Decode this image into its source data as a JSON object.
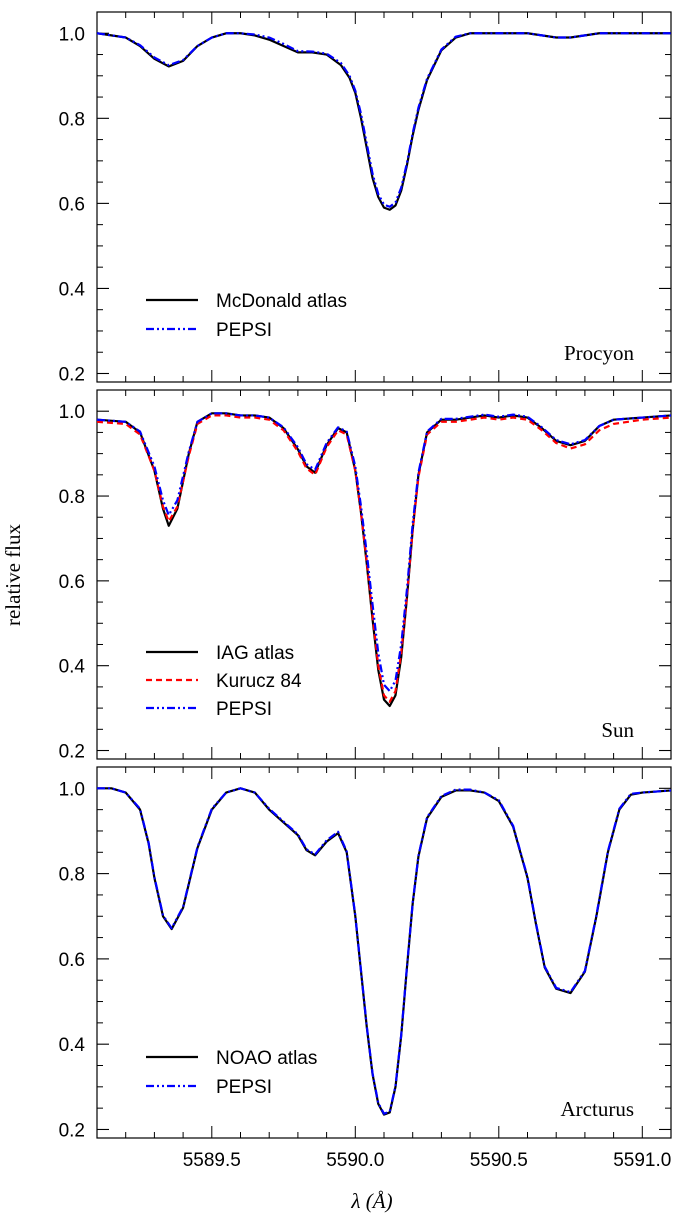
{
  "chart_data": [
    {
      "type": "line",
      "panel": "top",
      "label": "Procyon",
      "ylim": [
        0.18,
        1.05
      ],
      "xlim": [
        5589.1,
        5591.1
      ],
      "yticks": [
        0.2,
        0.4,
        0.6,
        0.8,
        1.0
      ],
      "ytick_labels": [
        "0.2",
        "0.4",
        "0.6",
        "0.8",
        "1.0"
      ],
      "legend_placement": "lower-left",
      "series": [
        {
          "name": "McDonald atlas",
          "color": "#000000",
          "dash": "solid",
          "width": 2.2,
          "x": [
            5589.1,
            5589.2,
            5589.25,
            5589.3,
            5589.35,
            5589.4,
            5589.45,
            5589.5,
            5589.55,
            5589.6,
            5589.65,
            5589.7,
            5589.75,
            5589.8,
            5589.85,
            5589.9,
            5589.95,
            5589.98,
            5590.0,
            5590.02,
            5590.04,
            5590.06,
            5590.08,
            5590.1,
            5590.12,
            5590.14,
            5590.16,
            5590.18,
            5590.2,
            5590.22,
            5590.25,
            5590.3,
            5590.35,
            5590.4,
            5590.45,
            5590.5,
            5590.55,
            5590.6,
            5590.65,
            5590.7,
            5590.75,
            5590.8,
            5590.85,
            5590.9,
            5591.0,
            5591.1
          ],
          "y": [
            1.0,
            0.99,
            0.97,
            0.94,
            0.922,
            0.935,
            0.97,
            0.99,
            1.0,
            1.0,
            0.995,
            0.985,
            0.97,
            0.955,
            0.955,
            0.95,
            0.925,
            0.895,
            0.86,
            0.8,
            0.73,
            0.66,
            0.615,
            0.59,
            0.585,
            0.595,
            0.63,
            0.69,
            0.76,
            0.82,
            0.89,
            0.96,
            0.99,
            1.0,
            1.0,
            1.0,
            1.0,
            1.0,
            0.995,
            0.99,
            0.99,
            0.995,
            1.0,
            1.0,
            1.0,
            1.0
          ]
        },
        {
          "name": "PEPSI",
          "color": "#0000ff",
          "dash": "dashdot",
          "width": 2.2,
          "x": [
            5589.1,
            5589.2,
            5589.25,
            5589.3,
            5589.35,
            5589.4,
            5589.45,
            5589.5,
            5589.55,
            5589.6,
            5589.65,
            5589.7,
            5589.75,
            5589.8,
            5589.85,
            5589.9,
            5589.95,
            5589.98,
            5590.0,
            5590.02,
            5590.04,
            5590.06,
            5590.08,
            5590.1,
            5590.12,
            5590.14,
            5590.16,
            5590.18,
            5590.2,
            5590.22,
            5590.25,
            5590.3,
            5590.35,
            5590.4,
            5590.45,
            5590.5,
            5590.55,
            5590.6,
            5590.65,
            5590.7,
            5590.75,
            5590.8,
            5590.85,
            5590.9,
            5591.0,
            5591.1
          ],
          "y": [
            1.0,
            0.99,
            0.972,
            0.943,
            0.925,
            0.937,
            0.97,
            0.99,
            1.0,
            1.0,
            0.997,
            0.99,
            0.975,
            0.958,
            0.957,
            0.952,
            0.93,
            0.9,
            0.865,
            0.81,
            0.74,
            0.67,
            0.622,
            0.597,
            0.592,
            0.602,
            0.637,
            0.695,
            0.765,
            0.825,
            0.893,
            0.962,
            0.992,
            1.0,
            1.0,
            1.0,
            1.0,
            1.0,
            0.995,
            0.99,
            0.99,
            0.995,
            1.0,
            1.0,
            1.0,
            1.0
          ]
        }
      ]
    },
    {
      "type": "line",
      "panel": "middle",
      "label": "Sun",
      "ylim": [
        0.18,
        1.05
      ],
      "xlim": [
        5589.1,
        5591.1
      ],
      "yticks": [
        0.2,
        0.4,
        0.6,
        0.8,
        1.0
      ],
      "ytick_labels": [
        "0.2",
        "0.4",
        "0.6",
        "0.8",
        "1.0"
      ],
      "ylabel": "relative flux",
      "legend_placement": "lower-left",
      "series": [
        {
          "name": "IAG atlas",
          "color": "#000000",
          "dash": "solid",
          "width": 2.2,
          "x": [
            5589.1,
            5589.2,
            5589.25,
            5589.3,
            5589.33,
            5589.35,
            5589.38,
            5589.42,
            5589.45,
            5589.5,
            5589.55,
            5589.6,
            5589.65,
            5589.7,
            5589.75,
            5589.8,
            5589.83,
            5589.86,
            5589.9,
            5589.94,
            5589.97,
            5590.0,
            5590.02,
            5590.04,
            5590.06,
            5590.08,
            5590.1,
            5590.12,
            5590.14,
            5590.16,
            5590.18,
            5590.2,
            5590.22,
            5590.25,
            5590.3,
            5590.35,
            5590.4,
            5590.45,
            5590.5,
            5590.55,
            5590.6,
            5590.65,
            5590.7,
            5590.75,
            5590.8,
            5590.85,
            5590.9,
            5591.0,
            5591.1
          ],
          "y": [
            0.98,
            0.975,
            0.95,
            0.86,
            0.77,
            0.73,
            0.77,
            0.9,
            0.975,
            0.995,
            0.995,
            0.99,
            0.99,
            0.985,
            0.96,
            0.91,
            0.87,
            0.855,
            0.92,
            0.96,
            0.95,
            0.86,
            0.76,
            0.64,
            0.51,
            0.39,
            0.32,
            0.305,
            0.33,
            0.42,
            0.56,
            0.72,
            0.85,
            0.95,
            0.98,
            0.98,
            0.985,
            0.99,
            0.985,
            0.99,
            0.985,
            0.96,
            0.93,
            0.92,
            0.93,
            0.965,
            0.98,
            0.985,
            0.99
          ]
        },
        {
          "name": "Kurucz 84",
          "color": "#ff0000",
          "dash": "dashed",
          "width": 2.2,
          "x": [
            5589.1,
            5589.2,
            5589.25,
            5589.3,
            5589.33,
            5589.35,
            5589.38,
            5589.42,
            5589.45,
            5589.5,
            5589.55,
            5589.6,
            5589.65,
            5589.7,
            5589.75,
            5589.8,
            5589.83,
            5589.86,
            5589.9,
            5589.94,
            5589.97,
            5590.0,
            5590.02,
            5590.04,
            5590.06,
            5590.08,
            5590.1,
            5590.12,
            5590.14,
            5590.16,
            5590.18,
            5590.2,
            5590.22,
            5590.25,
            5590.3,
            5590.35,
            5590.4,
            5590.45,
            5590.5,
            5590.55,
            5590.6,
            5590.65,
            5590.7,
            5590.75,
            5590.8,
            5590.85,
            5590.9,
            5591.0,
            5591.1
          ],
          "y": [
            0.975,
            0.97,
            0.945,
            0.86,
            0.775,
            0.74,
            0.775,
            0.895,
            0.97,
            0.99,
            0.99,
            0.985,
            0.985,
            0.98,
            0.955,
            0.905,
            0.865,
            0.85,
            0.915,
            0.955,
            0.945,
            0.86,
            0.76,
            0.645,
            0.52,
            0.4,
            0.33,
            0.315,
            0.34,
            0.43,
            0.565,
            0.72,
            0.845,
            0.945,
            0.975,
            0.975,
            0.98,
            0.985,
            0.98,
            0.985,
            0.98,
            0.955,
            0.925,
            0.912,
            0.922,
            0.955,
            0.97,
            0.98,
            0.985
          ]
        },
        {
          "name": "PEPSI",
          "color": "#0000ff",
          "dash": "dashdot",
          "width": 2.2,
          "x": [
            5589.1,
            5589.2,
            5589.25,
            5589.3,
            5589.33,
            5589.35,
            5589.38,
            5589.42,
            5589.45,
            5589.5,
            5589.55,
            5589.6,
            5589.65,
            5589.7,
            5589.75,
            5589.8,
            5589.83,
            5589.86,
            5589.9,
            5589.94,
            5589.97,
            5590.0,
            5590.02,
            5590.04,
            5590.06,
            5590.08,
            5590.1,
            5590.12,
            5590.14,
            5590.16,
            5590.18,
            5590.2,
            5590.22,
            5590.25,
            5590.3,
            5590.35,
            5590.4,
            5590.45,
            5590.5,
            5590.55,
            5590.6,
            5590.65,
            5590.7,
            5590.75,
            5590.8,
            5590.85,
            5590.9,
            5591.0,
            5591.1
          ],
          "y": [
            0.98,
            0.975,
            0.952,
            0.87,
            0.79,
            0.755,
            0.79,
            0.905,
            0.975,
            0.995,
            0.995,
            0.99,
            0.99,
            0.985,
            0.962,
            0.915,
            0.875,
            0.862,
            0.925,
            0.962,
            0.952,
            0.87,
            0.775,
            0.665,
            0.545,
            0.43,
            0.355,
            0.34,
            0.365,
            0.45,
            0.58,
            0.735,
            0.855,
            0.952,
            0.982,
            0.982,
            0.987,
            0.992,
            0.987,
            0.992,
            0.987,
            0.962,
            0.932,
            0.922,
            0.932,
            0.965,
            0.98,
            0.985,
            0.99
          ]
        }
      ]
    },
    {
      "type": "line",
      "panel": "bottom",
      "label": "Arcturus",
      "ylim": [
        0.18,
        1.05
      ],
      "xlim": [
        5589.1,
        5591.1
      ],
      "xticks": [
        5589.5,
        5590.0,
        5590.5,
        5591.0
      ],
      "xtick_labels": [
        "5589.5",
        "5590.0",
        "5590.5",
        "5591.0"
      ],
      "xlabel": "λ (Å)",
      "yticks": [
        0.2,
        0.4,
        0.6,
        0.8,
        1.0
      ],
      "ytick_labels": [
        "0.2",
        "0.4",
        "0.6",
        "0.8",
        "1.0"
      ],
      "legend_placement": "lower-left",
      "series": [
        {
          "name": "NOAO atlas",
          "color": "#000000",
          "dash": "solid",
          "width": 2.2,
          "x": [
            5589.1,
            5589.15,
            5589.2,
            5589.25,
            5589.28,
            5589.3,
            5589.33,
            5589.36,
            5589.4,
            5589.45,
            5589.5,
            5589.55,
            5589.6,
            5589.65,
            5589.7,
            5589.75,
            5589.8,
            5589.83,
            5589.86,
            5589.9,
            5589.94,
            5589.97,
            5590.0,
            5590.02,
            5590.04,
            5590.06,
            5590.08,
            5590.1,
            5590.12,
            5590.14,
            5590.16,
            5590.18,
            5590.2,
            5590.22,
            5590.25,
            5590.3,
            5590.35,
            5590.4,
            5590.45,
            5590.5,
            5590.55,
            5590.6,
            5590.63,
            5590.66,
            5590.7,
            5590.75,
            5590.8,
            5590.84,
            5590.88,
            5590.92,
            5590.96,
            5591.0,
            5591.1
          ],
          "y": [
            1.0,
            1.0,
            0.99,
            0.95,
            0.87,
            0.79,
            0.7,
            0.67,
            0.72,
            0.86,
            0.95,
            0.99,
            1.0,
            0.99,
            0.95,
            0.92,
            0.89,
            0.855,
            0.843,
            0.875,
            0.895,
            0.85,
            0.7,
            0.57,
            0.44,
            0.33,
            0.26,
            0.235,
            0.24,
            0.3,
            0.42,
            0.58,
            0.73,
            0.84,
            0.93,
            0.98,
            0.995,
            0.995,
            0.99,
            0.97,
            0.91,
            0.79,
            0.68,
            0.58,
            0.53,
            0.52,
            0.57,
            0.7,
            0.85,
            0.95,
            0.985,
            0.99,
            0.995
          ]
        },
        {
          "name": "PEPSI",
          "color": "#0000ff",
          "dash": "dashdot",
          "width": 2.2,
          "x": [
            5589.1,
            5589.15,
            5589.2,
            5589.25,
            5589.28,
            5589.3,
            5589.33,
            5589.36,
            5589.4,
            5589.45,
            5589.5,
            5589.55,
            5589.6,
            5589.65,
            5589.7,
            5589.75,
            5589.8,
            5589.83,
            5589.86,
            5589.9,
            5589.94,
            5589.97,
            5590.0,
            5590.02,
            5590.04,
            5590.06,
            5590.08,
            5590.1,
            5590.12,
            5590.14,
            5590.16,
            5590.18,
            5590.2,
            5590.22,
            5590.25,
            5590.3,
            5590.35,
            5590.4,
            5590.45,
            5590.5,
            5590.55,
            5590.6,
            5590.63,
            5590.66,
            5590.7,
            5590.75,
            5590.8,
            5590.84,
            5590.88,
            5590.92,
            5590.96,
            5591.0,
            5591.1
          ],
          "y": [
            1.0,
            1.0,
            0.99,
            0.952,
            0.872,
            0.792,
            0.702,
            0.672,
            0.722,
            0.862,
            0.952,
            0.99,
            1.0,
            0.99,
            0.952,
            0.922,
            0.892,
            0.857,
            0.845,
            0.878,
            0.898,
            0.852,
            0.702,
            0.572,
            0.442,
            0.332,
            0.262,
            0.237,
            0.242,
            0.302,
            0.422,
            0.582,
            0.732,
            0.842,
            0.932,
            0.982,
            0.997,
            0.997,
            0.99,
            0.972,
            0.912,
            0.792,
            0.682,
            0.582,
            0.532,
            0.522,
            0.572,
            0.702,
            0.852,
            0.952,
            0.987,
            0.99,
            0.995
          ]
        }
      ]
    }
  ]
}
